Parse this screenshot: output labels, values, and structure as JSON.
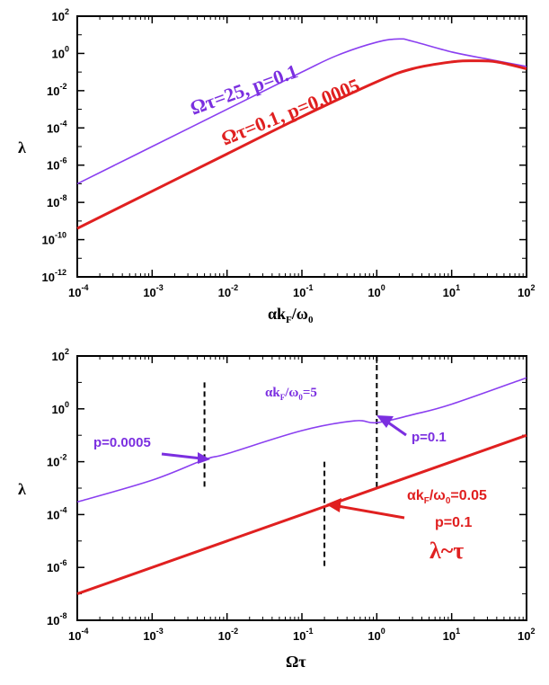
{
  "chart_data": [
    {
      "type": "line",
      "xscale": "log",
      "yscale": "log",
      "xlim": [
        0.0001,
        100
      ],
      "ylim": [
        1e-12,
        100
      ],
      "xlabel": "αk_F/ω_0",
      "ylabel": "λ",
      "x_ticks": [
        {
          "base": "10",
          "exp": "-4"
        },
        {
          "base": "10",
          "exp": "-3"
        },
        {
          "base": "10",
          "exp": "-2"
        },
        {
          "base": "10",
          "exp": "-1"
        },
        {
          "base": "10",
          "exp": "0"
        },
        {
          "base": "10",
          "exp": "1"
        },
        {
          "base": "10",
          "exp": "2"
        }
      ],
      "y_ticks": [
        {
          "base": "10",
          "exp": "-12"
        },
        {
          "base": "10",
          "exp": "-10"
        },
        {
          "base": "10",
          "exp": "-8"
        },
        {
          "base": "10",
          "exp": "-6"
        },
        {
          "base": "10",
          "exp": "-4"
        },
        {
          "base": "10",
          "exp": "-2"
        },
        {
          "base": "10",
          "exp": "0"
        },
        {
          "base": "10",
          "exp": "2"
        }
      ],
      "series": [
        {
          "name": "Ωτ=25, p=0.1",
          "color": "#8a3ff0",
          "x": [
            0.0001,
            0.001,
            0.01,
            0.1,
            0.3,
            1,
            2,
            3,
            10,
            30,
            100
          ],
          "y": [
            1e-07,
            1e-05,
            0.001,
            0.1,
            0.8,
            4,
            6,
            4.5,
            1.2,
            0.5,
            0.2
          ]
        },
        {
          "name": "Ωτ=0.1, p=0.0005",
          "color": "#e02020",
          "x": [
            0.0001,
            0.001,
            0.01,
            0.1,
            1,
            3,
            10,
            20,
            40,
            100
          ],
          "y": [
            4e-10,
            4e-08,
            4e-06,
            0.0004,
            0.03,
            0.15,
            0.35,
            0.4,
            0.35,
            0.15
          ]
        }
      ],
      "annotations": [
        {
          "text": "Ωτ=25, p=0.1",
          "color": "#8a3ff0"
        },
        {
          "text": "Ωτ=0.1, p=0.0005",
          "color": "#e02020"
        }
      ]
    },
    {
      "type": "line",
      "xscale": "log",
      "yscale": "log",
      "xlim": [
        0.0001,
        100
      ],
      "ylim": [
        1e-08,
        100
      ],
      "xlabel": "Ωτ",
      "ylabel": "λ",
      "x_ticks": [
        {
          "base": "10",
          "exp": "-4"
        },
        {
          "base": "10",
          "exp": "-3"
        },
        {
          "base": "10",
          "exp": "-2"
        },
        {
          "base": "10",
          "exp": "-1"
        },
        {
          "base": "10",
          "exp": "0"
        },
        {
          "base": "10",
          "exp": "1"
        },
        {
          "base": "10",
          "exp": "2"
        }
      ],
      "y_ticks": [
        {
          "base": "10",
          "exp": "-8"
        },
        {
          "base": "10",
          "exp": "-6"
        },
        {
          "base": "10",
          "exp": "-4"
        },
        {
          "base": "10",
          "exp": "-2"
        },
        {
          "base": "10",
          "exp": "0"
        },
        {
          "base": "10",
          "exp": "2"
        }
      ],
      "series": [
        {
          "name": "αk_F/ω_0=5",
          "color": "#8a3ff0",
          "x": [
            0.0001,
            0.001,
            0.005,
            0.01,
            0.1,
            0.5,
            1,
            3,
            10,
            100
          ],
          "y": [
            0.0003,
            0.002,
            0.012,
            0.02,
            0.15,
            0.35,
            0.3,
            0.6,
            1.5,
            15
          ]
        },
        {
          "name": "αk_F/ω_0=0.05",
          "color": "#e02020",
          "x": [
            0.0001,
            100
          ],
          "y": [
            1e-07,
            0.1
          ]
        }
      ],
      "vlines": [
        {
          "x": 0.005,
          "y": [
            0.001,
            10
          ]
        },
        {
          "x": 1,
          "y": [
            0.001,
            100
          ]
        },
        {
          "x": 0.2,
          "y": [
            1e-06,
            0.01
          ]
        }
      ],
      "annotations": [
        {
          "text": "αk_F/ω_0=5",
          "color": "#8a3ff0"
        },
        {
          "text": "p=0.0005",
          "color": "#8a3ff0"
        },
        {
          "text": "p=0.1",
          "color": "#8a3ff0"
        },
        {
          "text": "αk_F/ω_0=0.05",
          "color": "#e02020"
        },
        {
          "text": "p=0.1",
          "color": "#e02020"
        },
        {
          "text": "λ~τ",
          "color": "#e02020"
        }
      ]
    }
  ],
  "labels": {
    "top_anno_purple": "Ωτ=25, p=0.1",
    "top_anno_red": "Ωτ=0.1, p=0.0005",
    "bot_anno_purple_main_a": "αk",
    "bot_anno_purple_main_b": "F",
    "bot_anno_purple_main_c": "/ω",
    "bot_anno_purple_main_d": "0",
    "bot_anno_purple_main_e": "=5",
    "bot_anno_p1": "p=0.0005",
    "bot_anno_p2": "p=0.1",
    "bot_anno_red_a": "αk",
    "bot_anno_red_b": "F",
    "bot_anno_red_c": "/ω",
    "bot_anno_red_d": "0",
    "bot_anno_red_e": "=0.05",
    "bot_anno_red_p": "p=0.1",
    "bot_anno_red_lambda": "λ~τ",
    "top_xlabel_a": "αk",
    "top_xlabel_b": "F",
    "top_xlabel_c": "/ω",
    "top_xlabel_d": "0",
    "top_ylabel": "λ",
    "bot_xlabel": "Ωτ",
    "bot_ylabel": "λ"
  }
}
